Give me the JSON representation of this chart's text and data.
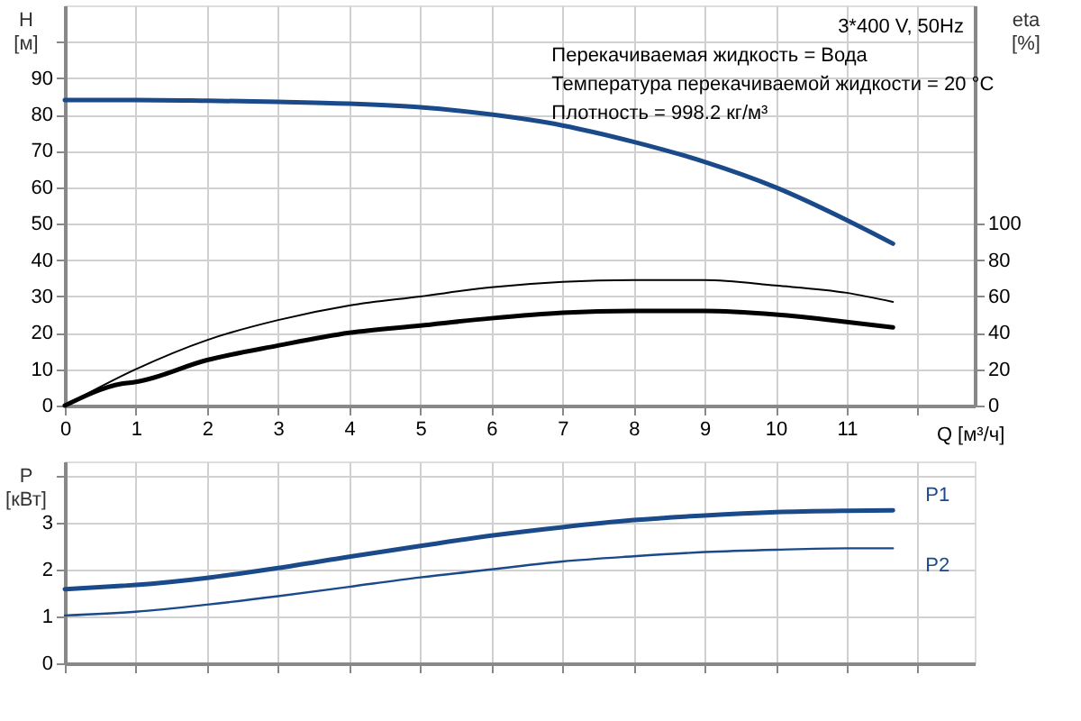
{
  "chart_data": [
    {
      "type": "line",
      "title": "3*400 V, 50Hz",
      "annotations": [
        "Перекачиваемая жидкость = Вода",
        "Температура перекачиваемой жидкости = 20 °C",
        "Плотность = 998.2 кг/м³"
      ],
      "xlabel": "Q [м³/ч]",
      "ylabel": "H [м]",
      "y2label": "eta [%]",
      "xlim": [
        0,
        12.8
      ],
      "xticks": [
        0,
        1,
        2,
        3,
        4,
        5,
        6,
        7,
        8,
        9,
        10,
        11,
        {
          "value": 12,
          "label": null
        }
      ],
      "ylim": [
        0,
        110
      ],
      "yticks": [
        0,
        10,
        20,
        30,
        40,
        50,
        60,
        70,
        80,
        90,
        {
          "value": 100,
          "label": null
        }
      ],
      "y2lim": [
        0,
        220
      ],
      "y2ticks": [
        0,
        20,
        40,
        60,
        80,
        100
      ],
      "grid": true,
      "legend": false,
      "marker": "none",
      "line_style": "solid",
      "series": [
        {
          "color": "#1a4a8a",
          "x": [
            0,
            1,
            2,
            3,
            4,
            5,
            6,
            7,
            8,
            9,
            10,
            11,
            11.65
          ],
          "values": [
            84,
            84,
            83.8,
            83.5,
            83,
            82,
            80,
            77,
            72.5,
            67,
            60,
            51,
            44.5
          ]
        },
        {
          "color": "#000000",
          "axis": "y2",
          "x": [
            0,
            1,
            2,
            3,
            4,
            5,
            6,
            7,
            8,
            9,
            10,
            11,
            11.65
          ],
          "values": [
            0,
            20,
            36,
            47,
            55,
            60,
            65,
            68,
            69,
            69,
            66,
            62,
            57
          ]
        },
        {
          "color": "#000000",
          "axis": "y2",
          "x": [
            0,
            0.8,
            1,
            2,
            3,
            4,
            5,
            6,
            7,
            8,
            9,
            10,
            11,
            11.65
          ],
          "values": [
            0,
            12,
            13,
            25,
            33,
            40,
            44,
            48,
            51,
            52,
            52,
            50,
            46,
            43
          ]
        }
      ]
    },
    {
      "type": "line",
      "ylabel": "P [кВт]",
      "tick_labels": "y",
      "xlim": [
        0,
        12.8
      ],
      "xticks": [
        0,
        1,
        2,
        3,
        4,
        5,
        6,
        7,
        8,
        9,
        10,
        11,
        {
          "value": 12,
          "label": null
        }
      ],
      "ylim": [
        0,
        4.3
      ],
      "yticks": [
        0,
        1,
        2,
        3,
        {
          "value": 4,
          "label": null
        }
      ],
      "grid": true,
      "legend": false,
      "marker": "none",
      "line_style": "solid",
      "series": [
        {
          "name": "P1",
          "color": "#1a4a8a",
          "x": [
            0,
            0.8,
            1,
            2,
            3,
            4,
            5,
            6,
            7,
            8,
            9,
            10,
            11,
            11.65
          ],
          "values": [
            1.58,
            1.65,
            1.67,
            1.82,
            2.03,
            2.27,
            2.5,
            2.72,
            2.9,
            3.05,
            3.15,
            3.22,
            3.25,
            3.26
          ]
        },
        {
          "name": "P2",
          "color": "#1a4a8a",
          "x": [
            0,
            1,
            2,
            3,
            4,
            5,
            6,
            7,
            8,
            9,
            10,
            11,
            11.65
          ],
          "values": [
            1.02,
            1.1,
            1.25,
            1.43,
            1.63,
            1.83,
            2.0,
            2.17,
            2.28,
            2.37,
            2.42,
            2.45,
            2.45
          ]
        }
      ]
    }
  ]
}
